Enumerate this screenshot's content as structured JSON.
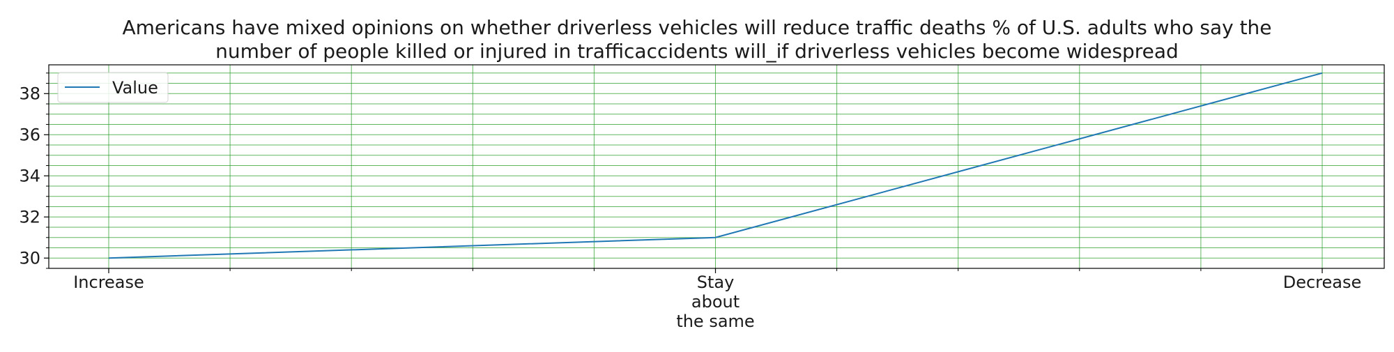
{
  "chart_data": {
    "type": "line",
    "title_lines": [
      "Americans have mixed opinions on whether driverless vehicles will reduce traffic deaths % of U.S. adults who say the",
      "number of people killed or injured in trafficaccidents will_if driverless vehicles become widespread"
    ],
    "categories": [
      [
        "Increase"
      ],
      [
        "Stay",
        "about",
        "the same"
      ],
      [
        "Decrease"
      ]
    ],
    "series": [
      {
        "name": "Value",
        "values": [
          30,
          31,
          39
        ],
        "color": "#1f77b4"
      }
    ],
    "ylim": [
      29.5,
      39.4
    ],
    "y_ticks": [
      30,
      32,
      34,
      36,
      38
    ],
    "y_minor_step": 0.5,
    "x_minor_count": 10,
    "grid": true,
    "grid_color": "#2ca02c",
    "legend_position": "top-left"
  }
}
